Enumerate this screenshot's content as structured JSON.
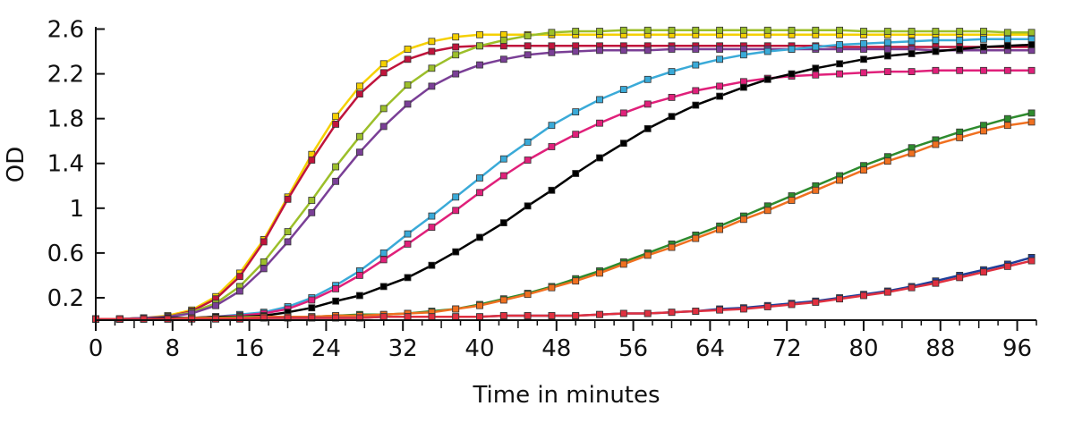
{
  "chart_data": {
    "type": "line",
    "title": "",
    "xlabel": "Time in minutes",
    "ylabel": "OD",
    "xlim": [
      0,
      98
    ],
    "ylim": [
      0.0,
      2.62
    ],
    "x_ticks": [
      0,
      8,
      16,
      24,
      32,
      40,
      48,
      56,
      64,
      72,
      80,
      88,
      96
    ],
    "x_tick_labels": [
      "0",
      "8",
      "16",
      "24",
      "32",
      "40",
      "48",
      "56",
      "64",
      "72",
      "80",
      "88",
      "96"
    ],
    "y_ticks": [
      0.2,
      0.6,
      1.0,
      1.4,
      1.8,
      2.2,
      2.6
    ],
    "y_tick_labels": [
      "0.2",
      "0.6",
      "1",
      "1.4",
      "1.8",
      "2.2",
      "2.6"
    ],
    "grid": false,
    "legend": "none",
    "x": [
      0,
      2.5,
      5,
      7.5,
      10,
      12.5,
      15,
      17.5,
      20,
      22.5,
      25,
      27.5,
      30,
      32.5,
      35,
      37.5,
      40,
      42.5,
      45,
      47.5,
      50,
      52.5,
      55,
      57.5,
      60,
      62.5,
      65,
      67.5,
      70,
      72.5,
      75,
      77.5,
      80,
      82.5,
      85,
      87.5,
      90,
      92.5,
      95,
      97.5
    ],
    "series": [
      {
        "color": "#f5d000",
        "values": [
          0.01,
          0.01,
          0.02,
          0.04,
          0.09,
          0.21,
          0.42,
          0.72,
          1.1,
          1.48,
          1.82,
          2.09,
          2.29,
          2.42,
          2.49,
          2.53,
          2.55,
          2.55,
          2.55,
          2.55,
          2.55,
          2.55,
          2.55,
          2.55,
          2.55,
          2.55,
          2.55,
          2.55,
          2.55,
          2.55,
          2.55,
          2.55,
          2.55,
          2.55,
          2.55,
          2.55,
          2.55,
          2.55,
          2.55,
          2.55
        ]
      },
      {
        "color": "#c0143c",
        "values": [
          0.01,
          0.01,
          0.02,
          0.03,
          0.08,
          0.19,
          0.39,
          0.7,
          1.08,
          1.43,
          1.75,
          2.02,
          2.21,
          2.33,
          2.4,
          2.44,
          2.45,
          2.45,
          2.45,
          2.45,
          2.45,
          2.45,
          2.45,
          2.45,
          2.45,
          2.45,
          2.45,
          2.45,
          2.45,
          2.45,
          2.45,
          2.44,
          2.44,
          2.44,
          2.44,
          2.44,
          2.44,
          2.44,
          2.44,
          2.44
        ]
      },
      {
        "color": "#9cbf2a",
        "values": [
          0.01,
          0.01,
          0.02,
          0.03,
          0.07,
          0.15,
          0.3,
          0.52,
          0.79,
          1.07,
          1.37,
          1.64,
          1.89,
          2.1,
          2.25,
          2.37,
          2.45,
          2.5,
          2.54,
          2.57,
          2.58,
          2.58,
          2.59,
          2.59,
          2.59,
          2.59,
          2.59,
          2.59,
          2.59,
          2.59,
          2.59,
          2.59,
          2.58,
          2.58,
          2.58,
          2.58,
          2.58,
          2.58,
          2.57,
          2.57
        ]
      },
      {
        "color": "#7a3f96",
        "values": [
          0.01,
          0.01,
          0.02,
          0.03,
          0.06,
          0.13,
          0.26,
          0.46,
          0.7,
          0.96,
          1.24,
          1.5,
          1.73,
          1.93,
          2.09,
          2.2,
          2.28,
          2.33,
          2.37,
          2.39,
          2.4,
          2.41,
          2.41,
          2.41,
          2.42,
          2.42,
          2.42,
          2.42,
          2.42,
          2.42,
          2.42,
          2.42,
          2.42,
          2.42,
          2.42,
          2.41,
          2.41,
          2.41,
          2.41,
          2.41
        ]
      },
      {
        "color": "#3aaad8",
        "values": [
          0.01,
          0.01,
          0.01,
          0.02,
          0.02,
          0.03,
          0.05,
          0.07,
          0.12,
          0.2,
          0.31,
          0.44,
          0.6,
          0.77,
          0.93,
          1.1,
          1.27,
          1.44,
          1.59,
          1.74,
          1.86,
          1.97,
          2.06,
          2.15,
          2.22,
          2.28,
          2.33,
          2.37,
          2.4,
          2.42,
          2.44,
          2.46,
          2.47,
          2.48,
          2.49,
          2.5,
          2.5,
          2.51,
          2.51,
          2.51
        ]
      },
      {
        "color": "#e0207a",
        "values": [
          0.01,
          0.01,
          0.01,
          0.02,
          0.02,
          0.03,
          0.04,
          0.06,
          0.1,
          0.18,
          0.28,
          0.4,
          0.54,
          0.68,
          0.83,
          0.98,
          1.14,
          1.29,
          1.43,
          1.55,
          1.66,
          1.76,
          1.85,
          1.93,
          1.99,
          2.05,
          2.09,
          2.13,
          2.16,
          2.18,
          2.19,
          2.2,
          2.21,
          2.22,
          2.22,
          2.23,
          2.23,
          2.23,
          2.23,
          2.23
        ]
      },
      {
        "color": "#000000",
        "values": [
          0.01,
          0.01,
          0.01,
          0.02,
          0.02,
          0.03,
          0.03,
          0.04,
          0.07,
          0.11,
          0.17,
          0.22,
          0.3,
          0.38,
          0.49,
          0.61,
          0.74,
          0.87,
          1.02,
          1.16,
          1.31,
          1.45,
          1.58,
          1.71,
          1.82,
          1.92,
          2.0,
          2.08,
          2.15,
          2.2,
          2.25,
          2.29,
          2.33,
          2.36,
          2.38,
          2.4,
          2.42,
          2.44,
          2.45,
          2.46
        ]
      },
      {
        "color": "#2e8b2e",
        "values": [
          0.01,
          0.01,
          0.01,
          0.01,
          0.02,
          0.02,
          0.03,
          0.03,
          0.03,
          0.03,
          0.04,
          0.05,
          0.05,
          0.06,
          0.08,
          0.1,
          0.14,
          0.19,
          0.24,
          0.3,
          0.37,
          0.44,
          0.52,
          0.6,
          0.68,
          0.76,
          0.84,
          0.93,
          1.02,
          1.11,
          1.2,
          1.29,
          1.38,
          1.46,
          1.54,
          1.61,
          1.68,
          1.74,
          1.8,
          1.85
        ]
      },
      {
        "color": "#f07020",
        "values": [
          0.01,
          0.01,
          0.01,
          0.01,
          0.02,
          0.02,
          0.02,
          0.03,
          0.03,
          0.03,
          0.04,
          0.04,
          0.05,
          0.06,
          0.07,
          0.1,
          0.13,
          0.18,
          0.23,
          0.29,
          0.35,
          0.42,
          0.5,
          0.58,
          0.65,
          0.73,
          0.81,
          0.9,
          0.98,
          1.07,
          1.16,
          1.25,
          1.34,
          1.42,
          1.49,
          1.57,
          1.63,
          1.69,
          1.74,
          1.77
        ]
      },
      {
        "color": "#1f3f99",
        "values": [
          0.01,
          0.01,
          0.01,
          0.01,
          0.01,
          0.01,
          0.01,
          0.02,
          0.02,
          0.02,
          0.02,
          0.02,
          0.03,
          0.03,
          0.03,
          0.03,
          0.03,
          0.04,
          0.04,
          0.04,
          0.04,
          0.05,
          0.06,
          0.06,
          0.07,
          0.08,
          0.1,
          0.11,
          0.13,
          0.15,
          0.17,
          0.2,
          0.23,
          0.26,
          0.3,
          0.35,
          0.4,
          0.45,
          0.5,
          0.56
        ]
      },
      {
        "color": "#e03040",
        "values": [
          0.01,
          0.01,
          0.01,
          0.01,
          0.01,
          0.01,
          0.01,
          0.02,
          0.02,
          0.02,
          0.02,
          0.02,
          0.03,
          0.03,
          0.03,
          0.03,
          0.03,
          0.04,
          0.04,
          0.04,
          0.04,
          0.05,
          0.06,
          0.06,
          0.07,
          0.08,
          0.09,
          0.1,
          0.12,
          0.14,
          0.16,
          0.19,
          0.22,
          0.25,
          0.29,
          0.33,
          0.38,
          0.43,
          0.48,
          0.53
        ]
      }
    ]
  }
}
